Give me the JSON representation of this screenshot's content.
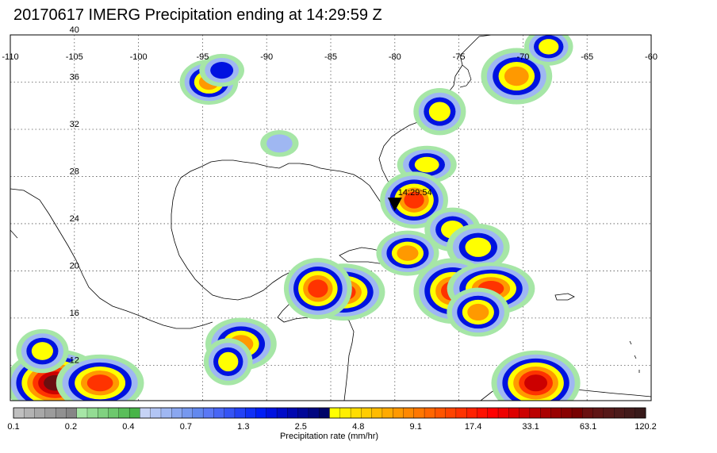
{
  "title": "20170617 IMERG Precipitation ending at 14:29:59 Z",
  "map": {
    "lon_range": [
      -110,
      -60
    ],
    "lat_range": [
      9,
      40
    ],
    "lon_ticks": [
      -110,
      -105,
      -100,
      -95,
      -90,
      -85,
      -80,
      -75,
      -70,
      -65,
      -60
    ],
    "lat_ticks": [
      12,
      16,
      20,
      24,
      28,
      32,
      36,
      40
    ],
    "lon_labels": [
      "-110",
      "-105",
      "-100",
      "-95",
      "-90",
      "-85",
      "-80",
      "-75",
      "-70",
      "-65",
      "-60"
    ],
    "lat_labels": [
      "12",
      "16",
      "20",
      "24",
      "28",
      "32",
      "36",
      "40"
    ],
    "grid": true,
    "overpass_marker": {
      "lon": -80.0,
      "lat": 25.6,
      "label": "14:29:54"
    }
  },
  "precip_cells": [
    {
      "lon": -94.5,
      "lat": 36.0,
      "intensity": 4.8
    },
    {
      "lon": -93.5,
      "lat": 37.0,
      "intensity": 1.3
    },
    {
      "lon": -89.0,
      "lat": 30.8,
      "intensity": 0.7
    },
    {
      "lon": -76.5,
      "lat": 33.5,
      "intensity": 2.5
    },
    {
      "lon": -77.5,
      "lat": 29.0,
      "intensity": 2.5
    },
    {
      "lon": -78.5,
      "lat": 26.0,
      "intensity": 9.1
    },
    {
      "lon": -75.5,
      "lat": 23.5,
      "intensity": 2.5
    },
    {
      "lon": -73.5,
      "lat": 22.0,
      "intensity": 2.5
    },
    {
      "lon": -79.0,
      "lat": 21.5,
      "intensity": 4.8
    },
    {
      "lon": -84.0,
      "lat": 18.2,
      "intensity": 9.1
    },
    {
      "lon": -86.0,
      "lat": 18.5,
      "intensity": 9.1
    },
    {
      "lon": -75.5,
      "lat": 18.3,
      "intensity": 9.1
    },
    {
      "lon": -72.5,
      "lat": 18.5,
      "intensity": 9.1
    },
    {
      "lon": -73.5,
      "lat": 16.5,
      "intensity": 4.8
    },
    {
      "lon": -92.0,
      "lat": 13.8,
      "intensity": 4.8
    },
    {
      "lon": -93.0,
      "lat": 12.3,
      "intensity": 2.5
    },
    {
      "lon": -106.5,
      "lat": 10.5,
      "intensity": 33.1
    },
    {
      "lon": -103.0,
      "lat": 10.5,
      "intensity": 9.1
    },
    {
      "lon": -107.5,
      "lat": 13.2,
      "intensity": 2.5
    },
    {
      "lon": -70.5,
      "lat": 36.5,
      "intensity": 4.8
    },
    {
      "lon": -68.0,
      "lat": 39.0,
      "intensity": 2.5
    },
    {
      "lon": -69.0,
      "lat": 10.5,
      "intensity": 17.4
    }
  ],
  "colorbar": {
    "label": "Precipitation rate (mm/hr)",
    "tick_labels": [
      "0.1",
      "0.2",
      "0.4",
      "0.7",
      "1.3",
      "2.5",
      "4.8",
      "9.1",
      "17.4",
      "33.1",
      "63.1",
      "120.2"
    ],
    "colors": [
      "#bfbfbf",
      "#b3b3b3",
      "#a8a8a8",
      "#9c9c9c",
      "#919191",
      "#868686",
      "#a6e6a6",
      "#93dc93",
      "#80d280",
      "#6dc86d",
      "#5abe5a",
      "#48b448",
      "#c6d3f5",
      "#b2c5f4",
      "#9fb7f2",
      "#8aa7f0",
      "#7698ef",
      "#6288ee",
      "#5a78f5",
      "#4866f5",
      "#3554f5",
      "#2342f5",
      "#1030f5",
      "#001ef5",
      "#0012e0",
      "#000cc8",
      "#0008b0",
      "#000798",
      "#000680",
      "#000568",
      "#ffff00",
      "#ffee00",
      "#ffdd00",
      "#ffcc00",
      "#ffbb00",
      "#ffaa00",
      "#ff9900",
      "#ff8800",
      "#ff7700",
      "#ff6600",
      "#ff5500",
      "#ff4400",
      "#ff3300",
      "#ff2200",
      "#ff1100",
      "#ff0000",
      "#ee0000",
      "#dd0000",
      "#cc0000",
      "#bb0000",
      "#aa0000",
      "#990000",
      "#880000",
      "#770000",
      "#6a1010",
      "#601515",
      "#561818",
      "#4c1a1a",
      "#421a1a",
      "#381a1a"
    ]
  },
  "colors": {
    "coast": "#000000",
    "grid": "#555555",
    "marker": "#000000"
  }
}
